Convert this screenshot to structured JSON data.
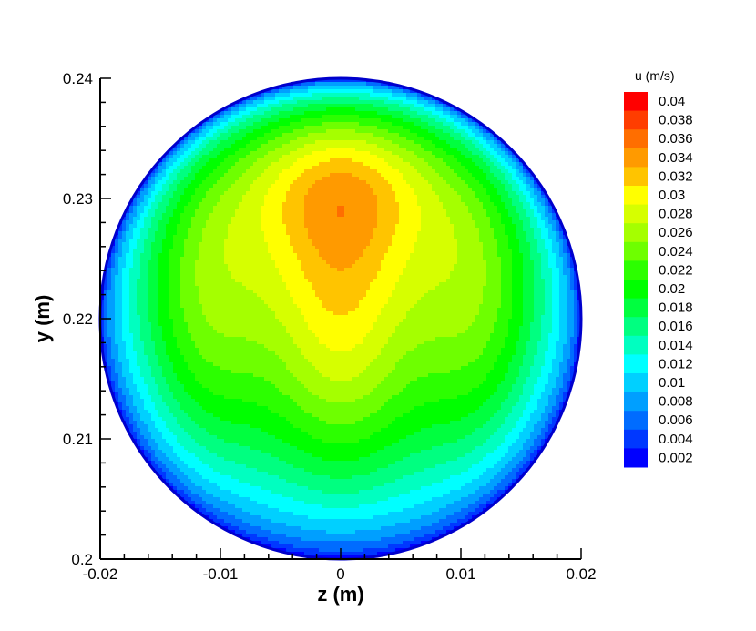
{
  "chart_data": {
    "type": "heatmap",
    "subtype": "filled-contour",
    "xlabel": "z  (m)",
    "ylabel": "y  (m)",
    "xlim": [
      -0.02,
      0.02
    ],
    "ylim": [
      0.2,
      0.24
    ],
    "x_ticks": [
      "-0.02",
      "-0.01",
      "0",
      "0.01",
      "0.02"
    ],
    "y_ticks": [
      "0.2",
      "0.21",
      "0.22",
      "0.23",
      "0.24"
    ],
    "x_tick_values": [
      -0.02,
      -0.01,
      0,
      0.01,
      0.02
    ],
    "y_tick_values": [
      0.2,
      0.21,
      0.22,
      0.23,
      0.24
    ],
    "domain": {
      "shape": "circle",
      "center": [
        0,
        0.22
      ],
      "radius": 0.02
    },
    "legend": {
      "title": "u  (m/s)",
      "placement": "right",
      "levels": [
        0.04,
        0.038,
        0.036,
        0.034,
        0.032,
        0.03,
        0.028,
        0.026,
        0.024,
        0.022,
        0.02,
        0.018,
        0.016,
        0.014,
        0.012,
        0.01,
        0.008,
        0.006,
        0.004,
        0.002
      ],
      "labels": [
        "0.04",
        "0.038",
        "0.036",
        "0.034",
        "0.032",
        "0.03",
        "0.028",
        "0.026",
        "0.024",
        "0.022",
        "0.02",
        "0.018",
        "0.016",
        "0.014",
        "0.012",
        "0.01",
        "0.008",
        "0.006",
        "0.004",
        "0.002"
      ],
      "colors": [
        "#ff0000",
        "#ff3d00",
        "#ff6e00",
        "#ff9a00",
        "#ffc400",
        "#ffff00",
        "#d6ff00",
        "#a5ff00",
        "#6eff00",
        "#2cff00",
        "#00ff00",
        "#00ff3f",
        "#00ff80",
        "#00ffc0",
        "#00ffff",
        "#00d0ff",
        "#009fff",
        "#006cff",
        "#0038ff",
        "#0000ff"
      ]
    },
    "max_region_center": [
      0,
      0.232
    ],
    "contour_lines": "black",
    "grid": false
  }
}
